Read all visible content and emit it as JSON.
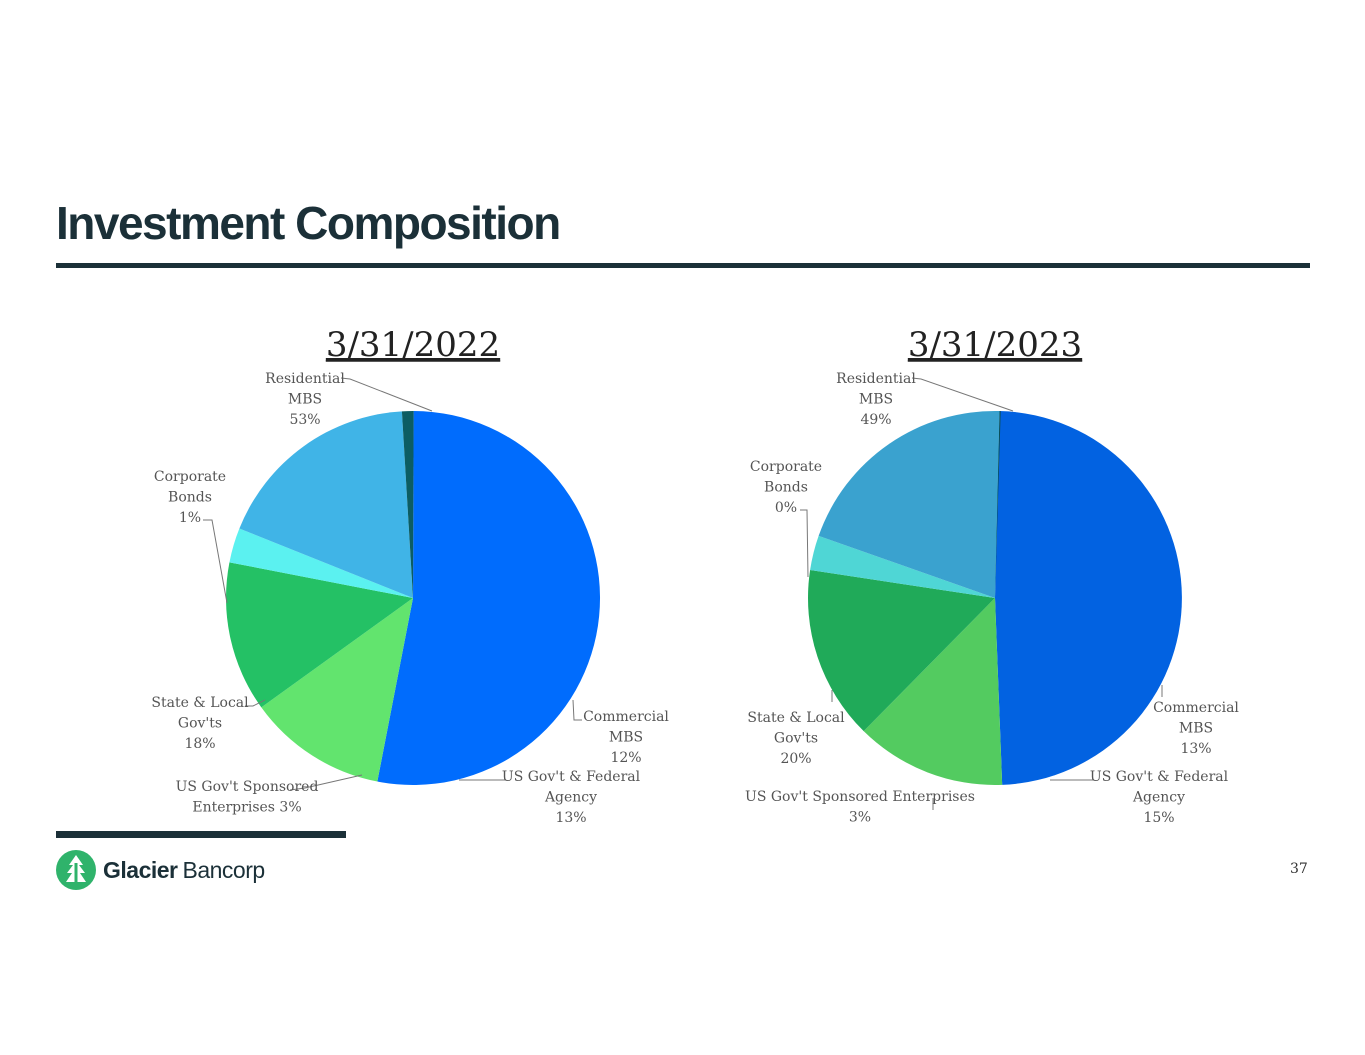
{
  "page": {
    "title": "Investment Composition",
    "page_number": "37"
  },
  "logo": {
    "brand_bold": "Glacier",
    "brand_light": "Bancorp"
  },
  "chart_data": [
    {
      "type": "pie",
      "title": "3/31/2022",
      "slices": [
        {
          "name": "Residential MBS",
          "label_lines": [
            "Residential",
            "MBS",
            "53%"
          ],
          "value": 53,
          "color": "#006cfd"
        },
        {
          "name": "Commercial MBS",
          "label_lines": [
            "Commercial",
            "MBS",
            "12%"
          ],
          "value": 12,
          "color": "#62e46e"
        },
        {
          "name": "US Gov't & Federal Agency",
          "label_lines": [
            "US Gov't & Federal",
            "Agency",
            "13%"
          ],
          "value": 13,
          "color": "#24c165"
        },
        {
          "name": "US Gov't Sponsored Enterprises",
          "label_lines": [
            "US Gov't Sponsored",
            "Enterprises 3%"
          ],
          "value": 3,
          "color": "#5bf1f0"
        },
        {
          "name": "State & Local Gov'ts",
          "label_lines": [
            "State & Local",
            "Gov'ts",
            "18%"
          ],
          "value": 18,
          "color": "#40b4e7"
        },
        {
          "name": "Corporate Bonds",
          "label_lines": [
            "Corporate",
            "Bonds",
            "1%"
          ],
          "value": 1,
          "color": "#0c5d63"
        }
      ]
    },
    {
      "type": "pie",
      "title": "3/31/2023",
      "slices": [
        {
          "name": "Residential MBS",
          "label_lines": [
            "Residential",
            "MBS",
            "49%"
          ],
          "value": 49,
          "color": "#0262e1"
        },
        {
          "name": "Commercial MBS",
          "label_lines": [
            "Commercial",
            "MBS",
            "13%"
          ],
          "value": 13,
          "color": "#53cb60"
        },
        {
          "name": "US Gov't & Federal Agency",
          "label_lines": [
            "US Gov't & Federal",
            "Agency",
            "15%"
          ],
          "value": 15,
          "color": "#20aa59"
        },
        {
          "name": "US Gov't Sponsored Enterprises",
          "label_lines": [
            "US Gov't Sponsored Enterprises",
            "3%"
          ],
          "value": 3,
          "color": "#4fd6d5"
        },
        {
          "name": "State & Local Gov'ts",
          "label_lines": [
            "State & Local",
            "Gov'ts",
            "20%"
          ],
          "value": 20,
          "color": "#3aa2cf"
        },
        {
          "name": "Corporate Bonds",
          "label_lines": [
            "Corporate",
            "Bonds",
            "0%"
          ],
          "value": 0,
          "color": "#0a4f55"
        }
      ]
    }
  ]
}
